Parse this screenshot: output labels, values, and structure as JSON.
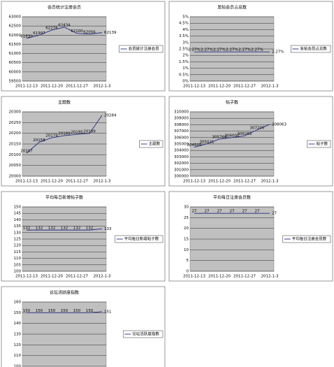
{
  "chart_data": [
    {
      "type": "line",
      "title": "会员统计注册会员",
      "categories": [
        "2011-12-13",
        null,
        "2011-12-20",
        null,
        "2011-12-27",
        null,
        "2012-1-3"
      ],
      "series": [
        {
          "name": "会员统计注册会员",
          "color": "#1f2a80",
          "values": [
            61830,
            61997,
            62276,
            62434,
            62100,
            62056,
            62139
          ]
        }
      ],
      "ylim": [
        59500,
        63000
      ],
      "yticks": [
        59500,
        60000,
        60500,
        61000,
        61500,
        62000,
        62500,
        63000
      ],
      "grid": true,
      "legend": "right"
    },
    {
      "type": "line",
      "title": "发帖会员占总数",
      "categories": [
        "2011-12-13",
        null,
        "2011-12-20",
        null,
        "2011-12-27",
        null,
        "2012-1-3"
      ],
      "series": [
        {
          "name": "发帖会员占总数",
          "color": "#1f2a80",
          "values": [
            2.27,
            2.27,
            2.27,
            2.27,
            2.27,
            2.27,
            2.27
          ],
          "value_labels": [
            "2.27%",
            "2.27%",
            "2.27%",
            "2.27%",
            "2.27%",
            "2.27%",
            "2.27%"
          ]
        }
      ],
      "ylim": [
        0,
        5
      ],
      "yticks": [
        {
          "value": 0,
          "label": "0%"
        },
        {
          "value": 0.5,
          "label": "0.5%"
        },
        {
          "value": 1,
          "label": "1%"
        },
        {
          "value": 1.5,
          "label": "1.5%"
        },
        {
          "value": 2,
          "label": "2%"
        },
        {
          "value": 2.5,
          "label": "2.5%"
        },
        {
          "value": 3,
          "label": "3%"
        },
        {
          "value": 3.5,
          "label": "3.5%"
        },
        {
          "value": 4,
          "label": "4%"
        },
        {
          "value": 4.5,
          "label": "4.5%"
        },
        {
          "value": 5,
          "label": "5%"
        }
      ],
      "grid": true,
      "legend": "right"
    },
    {
      "type": "line",
      "title": "主题数",
      "categories": [
        "2011-12-13",
        null,
        "2011-12-20",
        null,
        "2011-12-27",
        null,
        "2012-1-3"
      ],
      "series": [
        {
          "name": "主题数",
          "color": "#1f2a80",
          "values": [
            20107,
            20158,
            20179,
            20189,
            20195,
            20199,
            20284
          ]
        }
      ],
      "ylim": [
        20000,
        20300
      ],
      "yticks": [
        20000,
        20050,
        20100,
        20150,
        20200,
        20250,
        20300
      ],
      "grid": true,
      "legend": "right"
    },
    {
      "type": "line",
      "title": "帖子数",
      "categories": [
        "2011-12-13",
        null,
        "2011-12-20",
        null,
        "2011-12-27",
        null,
        "2012-1-3"
      ],
      "series": [
        {
          "name": "帖子数",
          "color": "#1f2a80",
          "values": [
            304505,
            305021,
            305769,
            306000,
            306265,
            307200,
            308063
          ]
        }
      ],
      "ylim": [
        300000,
        310000
      ],
      "yticks": [
        300000,
        301000,
        302000,
        303000,
        304000,
        305000,
        306000,
        307000,
        308000,
        309000,
        310000
      ],
      "grid": true,
      "legend": "right"
    },
    {
      "type": "line",
      "title": "平均每日新增帖子数",
      "categories": [
        "2011-12-13",
        null,
        "2011-12-20",
        null,
        "2011-12-27",
        null,
        "2012-1-3"
      ],
      "series": [
        {
          "name": "平均每日新增帖子数",
          "color": "#1f2a80",
          "values": [
            132,
            132,
            132,
            132,
            132,
            132,
            133
          ]
        }
      ],
      "ylim": [
        100,
        150
      ],
      "yticks": [
        100,
        105,
        110,
        115,
        120,
        125,
        130,
        135,
        140,
        145,
        150
      ],
      "grid": true,
      "legend": "right"
    },
    {
      "type": "line",
      "title": "平均每日注册会员数",
      "categories": [
        "2011-12-13",
        null,
        "2011-12-20",
        null,
        "2011-12-27",
        null,
        "2012-1-3"
      ],
      "series": [
        {
          "name": "平均每日注册会员数",
          "color": "#1f2a80",
          "values": [
            27,
            27,
            27,
            27,
            27,
            27,
            27
          ]
        }
      ],
      "ylim": [
        0,
        30
      ],
      "yticks": [
        0,
        5,
        10,
        15,
        20,
        25,
        30
      ],
      "grid": true,
      "legend": "right"
    },
    {
      "type": "line",
      "title": "论坛活跃度指数",
      "categories": [
        "2011-12-13",
        null,
        "2011-12-20",
        null,
        "2011-12-27",
        null,
        "2012-1-3"
      ],
      "series": [
        {
          "name": "论坛活跃度指数",
          "color": "#1f2a80",
          "values": [
            150,
            150,
            150,
            150,
            150,
            150,
            151
          ]
        }
      ],
      "ylim": [
        100,
        160
      ],
      "yticks": [
        100,
        110,
        120,
        130,
        140,
        150,
        160
      ],
      "grid": true,
      "legend": "right"
    }
  ]
}
